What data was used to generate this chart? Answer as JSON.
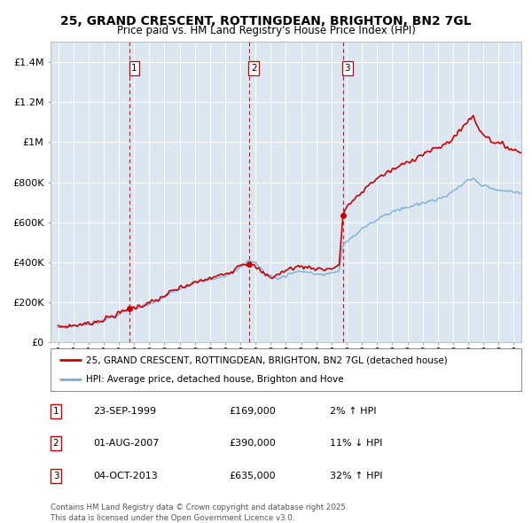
{
  "title_line1": "25, GRAND CRESCENT, ROTTINGDEAN, BRIGHTON, BN2 7GL",
  "title_line2": "Price paid vs. HM Land Registry's House Price Index (HPI)",
  "legend_line1": "25, GRAND CRESCENT, ROTTINGDEAN, BRIGHTON, BN2 7GL (detached house)",
  "legend_line2": "HPI: Average price, detached house, Brighton and Hove",
  "footnote": "Contains HM Land Registry data © Crown copyright and database right 2025.\nThis data is licensed under the Open Government Licence v3.0.",
  "price_color": "#cc0000",
  "hpi_color": "#7bafd4",
  "background_color": "#dce6f1",
  "table_rows": [
    {
      "num": "1",
      "date": "23-SEP-1999",
      "price": "£169,000",
      "hpi": "2% ↑ HPI"
    },
    {
      "num": "2",
      "date": "01-AUG-2007",
      "price": "£390,000",
      "hpi": "11% ↓ HPI"
    },
    {
      "num": "3",
      "date": "04-OCT-2013",
      "price": "£635,000",
      "hpi": "32% ↑ HPI"
    }
  ],
  "sale_dates": [
    1999.72,
    2007.58,
    2013.75
  ],
  "sale_prices": [
    169000,
    390000,
    635000
  ],
  "ylim": [
    0,
    1500000
  ],
  "xlim": [
    1994.5,
    2025.5
  ],
  "yticks": [
    0,
    200000,
    400000,
    600000,
    800000,
    1000000,
    1200000,
    1400000
  ],
  "ytick_labels": [
    "£0",
    "£200K",
    "£400K",
    "£600K",
    "£800K",
    "£1M",
    "£1.2M",
    "£1.4M"
  ],
  "xticks": [
    1995,
    1996,
    1997,
    1998,
    1999,
    2000,
    2001,
    2002,
    2003,
    2004,
    2005,
    2006,
    2007,
    2008,
    2009,
    2010,
    2011,
    2012,
    2013,
    2014,
    2015,
    2016,
    2017,
    2018,
    2019,
    2020,
    2021,
    2022,
    2023,
    2024,
    2025
  ]
}
